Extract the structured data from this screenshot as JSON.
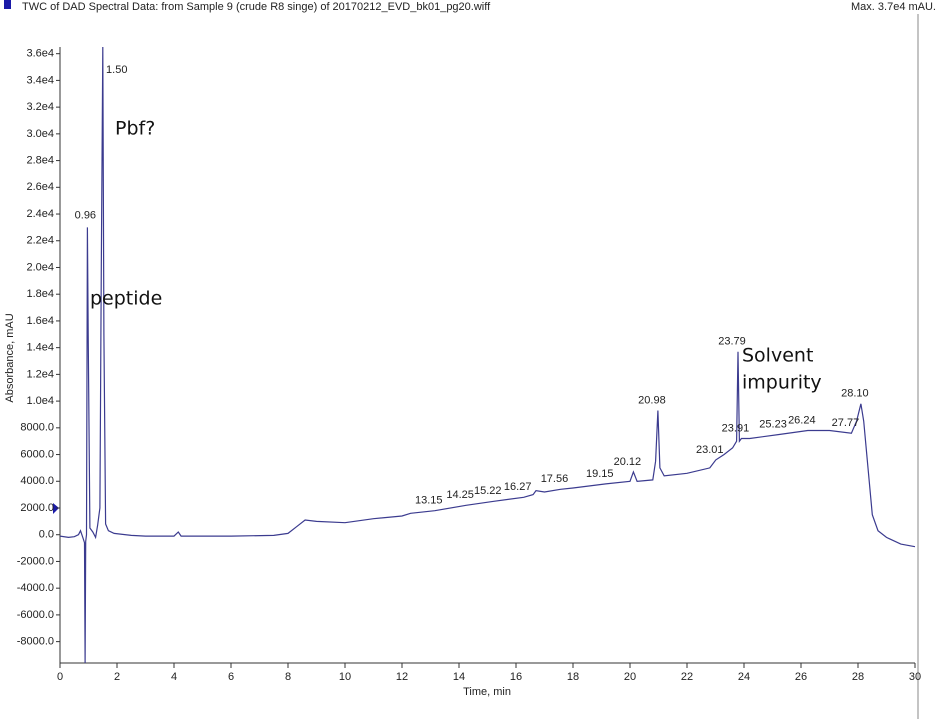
{
  "chart_data": {
    "type": "line",
    "title": "TWC of DAD Spectral Data: from Sample 9 (crude R8 singe) of 20170212_EVD_bk01_pg20.wiff",
    "max_label": "Max. 3.7e4 mAU.",
    "x_label": "Time, min",
    "y_label": "Absorbance, mAU",
    "xlim": [
      0,
      30
    ],
    "xticks": [
      0,
      2,
      4,
      6,
      8,
      10,
      12,
      14,
      16,
      18,
      20,
      22,
      24,
      26,
      28,
      30
    ],
    "ylim": [
      -9600,
      36500
    ],
    "yticks": [
      {
        "value": -8000,
        "label": "-8000.0"
      },
      {
        "value": -6000,
        "label": "-6000.0"
      },
      {
        "value": -4000,
        "label": "-4000.0"
      },
      {
        "value": -2000,
        "label": "-2000.0"
      },
      {
        "value": 0,
        "label": "0.0"
      },
      {
        "value": 2000,
        "label": "2000.0"
      },
      {
        "value": 4000,
        "label": "4000.0"
      },
      {
        "value": 6000,
        "label": "6000.0"
      },
      {
        "value": 8000,
        "label": "8000.0"
      },
      {
        "value": 10000,
        "label": "1.0e4"
      },
      {
        "value": 12000,
        "label": "1.2e4"
      },
      {
        "value": 14000,
        "label": "1.4e4"
      },
      {
        "value": 16000,
        "label": "1.6e4"
      },
      {
        "value": 18000,
        "label": "1.8e4"
      },
      {
        "value": 20000,
        "label": "2.0e4"
      },
      {
        "value": 22000,
        "label": "2.2e4"
      },
      {
        "value": 24000,
        "label": "2.4e4"
      },
      {
        "value": 26000,
        "label": "2.6e4"
      },
      {
        "value": 28000,
        "label": "2.8e4"
      },
      {
        "value": 30000,
        "label": "3.0e4"
      },
      {
        "value": 32000,
        "label": "3.2e4"
      },
      {
        "value": 34000,
        "label": "3.4e4"
      },
      {
        "value": 36000,
        "label": "3.6e4"
      }
    ],
    "series": [
      {
        "color": "#3b3b8f",
        "x": [
          0,
          0.3,
          0.5,
          0.65,
          0.72,
          0.8,
          0.86,
          0.88,
          0.9,
          0.93,
          0.96,
          0.99,
          1.05,
          1.15,
          1.25,
          1.32,
          1.4,
          1.45,
          1.5,
          1.54,
          1.6,
          1.7,
          1.9,
          2.5,
          3,
          4,
          4.15,
          4.25,
          4.4,
          6,
          7.5,
          8,
          8.3,
          8.6,
          9,
          10,
          11,
          12,
          12.3,
          13.15,
          14.25,
          15.22,
          16.27,
          16.6,
          16.7,
          17,
          17.56,
          18,
          19.15,
          20,
          20.12,
          20.25,
          20.8,
          20.9,
          20.98,
          21.05,
          21.2,
          22,
          22.8,
          23.01,
          23.3,
          23.6,
          23.74,
          23.79,
          23.84,
          23.91,
          24.2,
          25.23,
          26.24,
          27,
          27.77,
          27.95,
          28.1,
          28.2,
          28.35,
          28.5,
          28.7,
          29,
          29.5,
          30
        ],
        "values": [
          -100,
          -200,
          -150,
          0,
          300,
          -200,
          -600,
          -9600,
          -500,
          0,
          23000,
          15000,
          500,
          200,
          -200,
          700,
          2000,
          20000,
          36500,
          15000,
          800,
          300,
          100,
          -50,
          -100,
          -100,
          200,
          -100,
          -100,
          -100,
          -50,
          100,
          600,
          1100,
          1000,
          900,
          1200,
          1400,
          1600,
          1800,
          2200,
          2500,
          2800,
          3000,
          3300,
          3200,
          3400,
          3500,
          3800,
          4000,
          4700,
          4000,
          4100,
          5500,
          9300,
          5000,
          4400,
          4600,
          5000,
          5600,
          6000,
          6500,
          7000,
          13700,
          7000,
          7200,
          7200,
          7500,
          7800,
          7800,
          7600,
          8500,
          9800,
          8500,
          5000,
          1500,
          300,
          -200,
          -700,
          -900
        ]
      }
    ],
    "peaks": {
      "x": [
        0.96,
        1.5,
        13.15,
        14.25,
        15.22,
        16.27,
        17.56,
        19.15,
        20.12,
        20.98,
        23.01,
        23.79,
        23.91,
        25.23,
        26.24,
        27.77,
        28.1
      ],
      "values": [
        23000,
        36500,
        1800,
        2200,
        2500,
        2800,
        3400,
        3800,
        4700,
        9300,
        5600,
        13700,
        7200,
        7500,
        7800,
        7600,
        9800
      ],
      "value_labels": [
        "0.96",
        "1.50",
        "13.15",
        "14.25",
        "15.22",
        "16.27",
        "17.56",
        "19.15",
        "20.12",
        "20.98",
        "23.01",
        "23.79",
        "23.91",
        "25.23",
        "26.24",
        "27.77",
        "28.10"
      ]
    },
    "annotations": [
      "Pbf?",
      "peptide",
      "Solvent",
      "impurity"
    ]
  }
}
